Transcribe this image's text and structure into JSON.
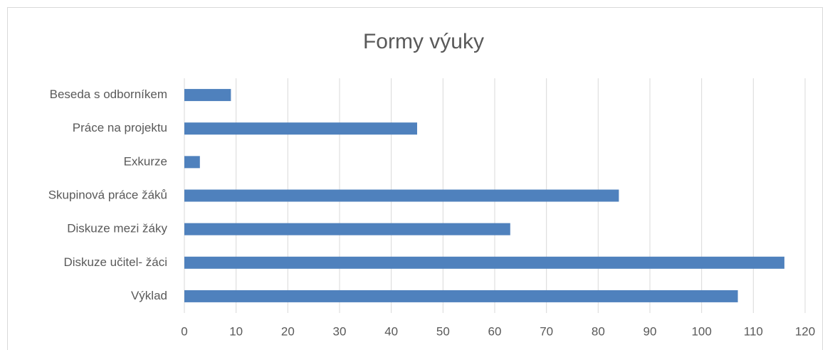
{
  "chart_data": {
    "type": "bar",
    "orientation": "horizontal",
    "title": "Formy výuky",
    "categories": [
      "Beseda s odborníkem",
      "Práce na projektu",
      "Exkurze",
      "Skupinová práce žáků",
      "Diskuze mezi žáky",
      "Diskuze učitel- žáci",
      "Výklad"
    ],
    "values": [
      9,
      45,
      3,
      84,
      63,
      116,
      107
    ],
    "color": "#4f81bd",
    "xlim": [
      0,
      120
    ],
    "xticks": [
      0,
      10,
      20,
      30,
      40,
      50,
      60,
      70,
      80,
      90,
      100,
      110,
      120
    ],
    "grid": true
  }
}
